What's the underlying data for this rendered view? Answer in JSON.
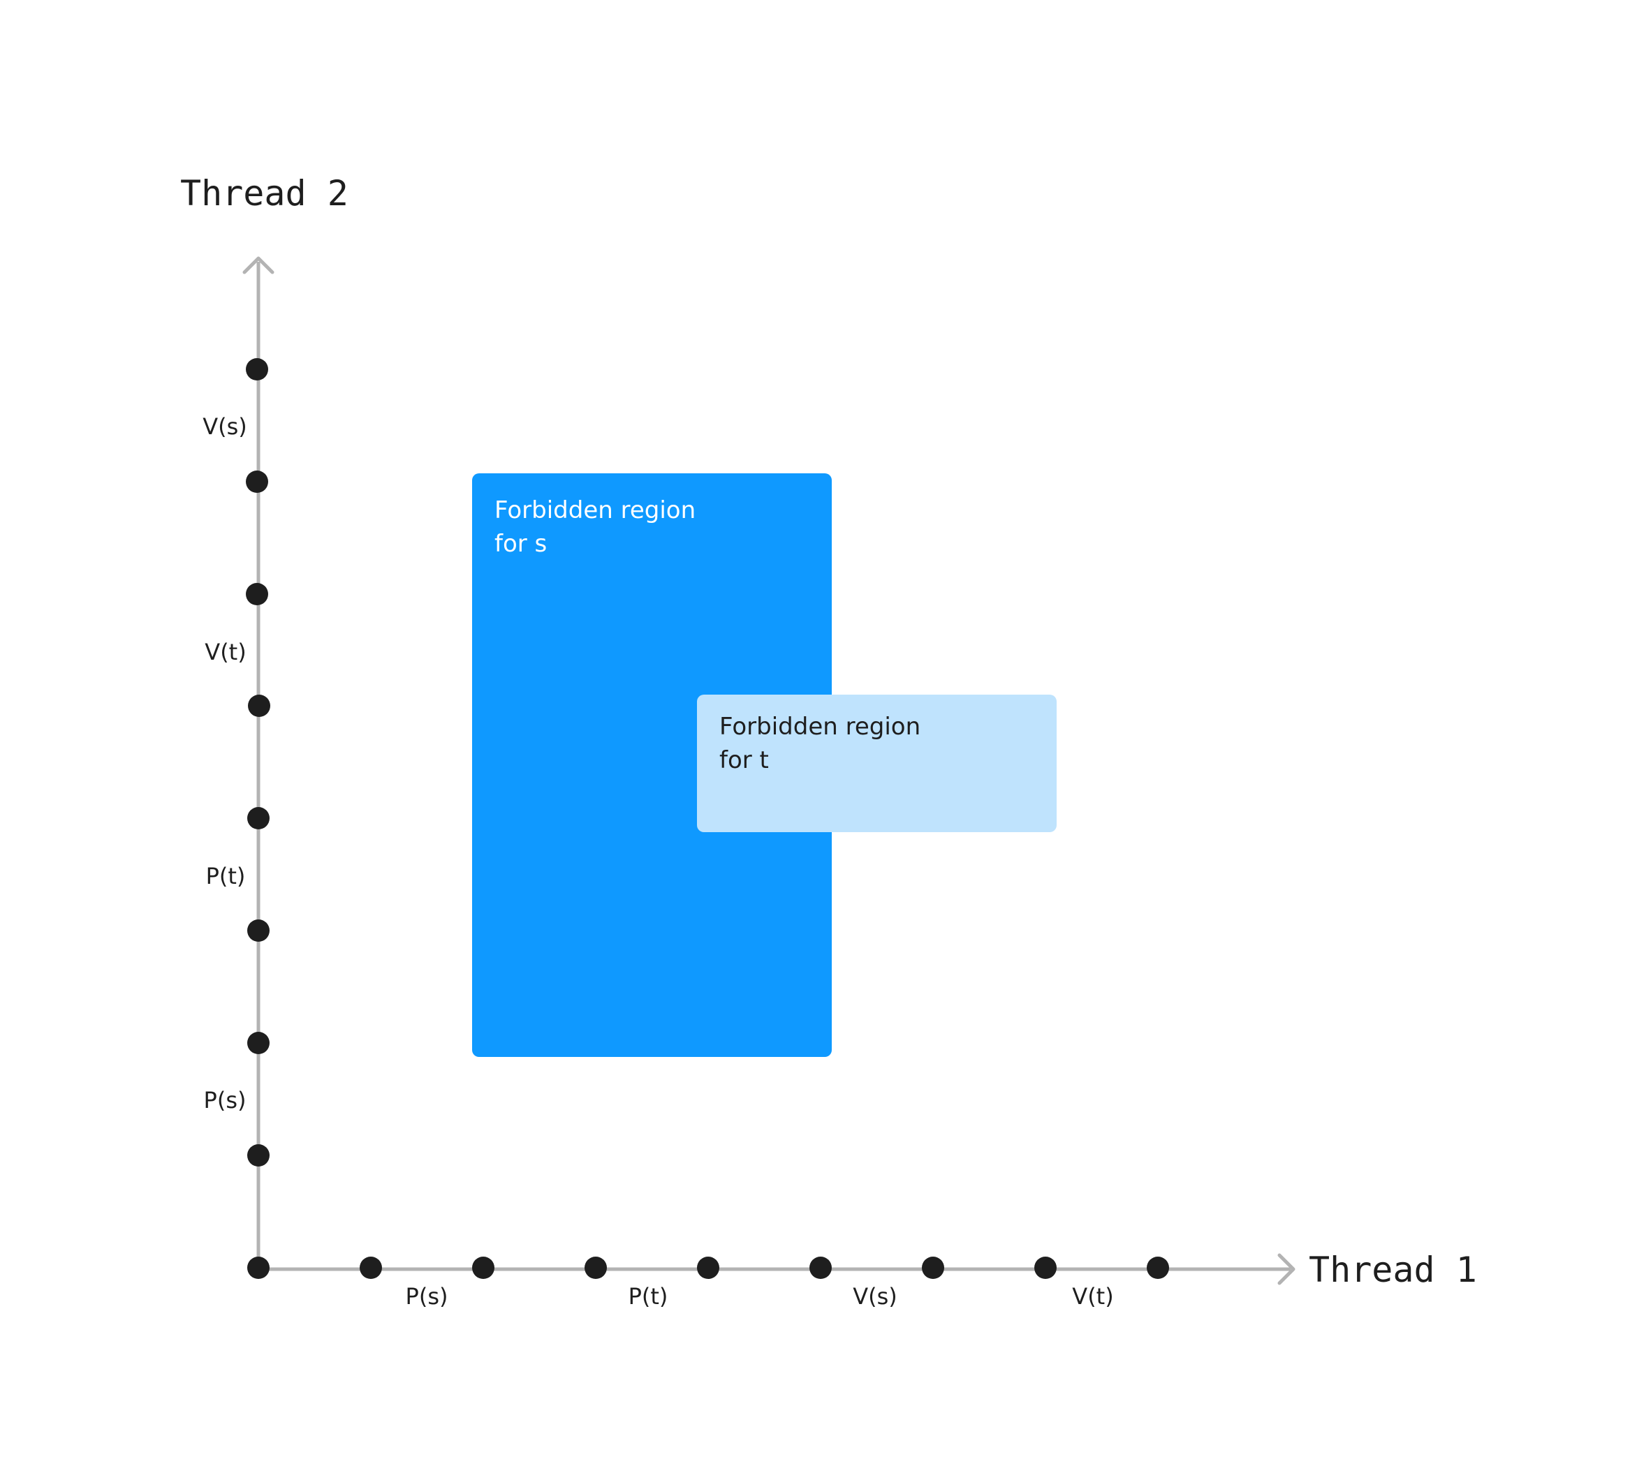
{
  "axes": {
    "x_title": "Thread 1",
    "y_title": "Thread 2"
  },
  "x_segments": [
    {
      "label": "P(s)"
    },
    {
      "label": "P(t)"
    },
    {
      "label": "V(s)"
    },
    {
      "label": "V(t)"
    }
  ],
  "y_segments": [
    {
      "label": "P(s)"
    },
    {
      "label": "P(t)"
    },
    {
      "label": "V(t)"
    },
    {
      "label": "V(s)"
    }
  ],
  "regions": {
    "s": {
      "line1": "Forbidden region",
      "line2": "for s",
      "color": "#0f99ff"
    },
    "t": {
      "line1": "Forbidden region",
      "line2": "for t",
      "color": "#bfe3fd"
    }
  },
  "colors": {
    "axis": "#b3b3b3",
    "node": "#1e1e1e"
  }
}
